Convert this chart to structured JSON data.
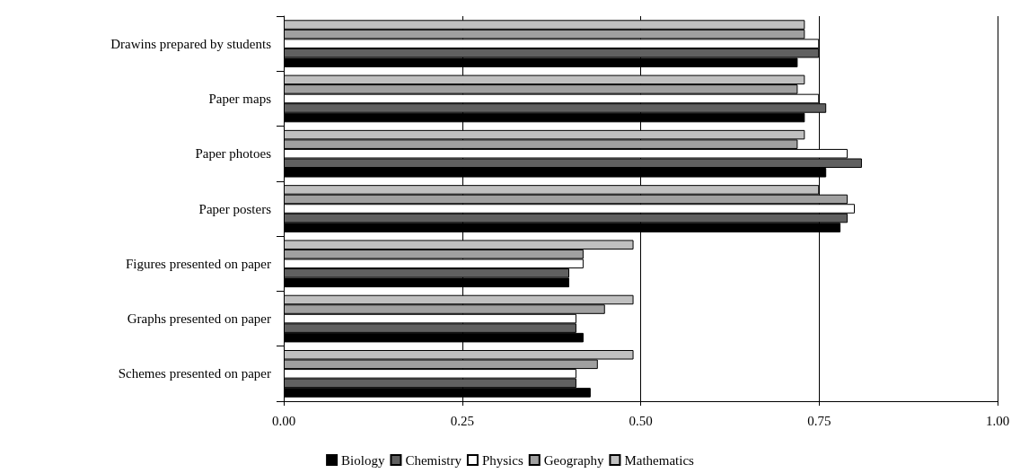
{
  "chart_data": {
    "type": "bar",
    "orientation": "horizontal",
    "categories": [
      "Drawins prepared by students",
      "Paper maps",
      "Paper photoes",
      "Paper posters",
      "Figures presented on paper",
      "Graphs presented on paper",
      "Schemes presented on paper"
    ],
    "series": [
      {
        "name": "Mathematics",
        "color": "#c0c0c0",
        "values": [
          0.73,
          0.73,
          0.73,
          0.75,
          0.49,
          0.49,
          0.49
        ]
      },
      {
        "name": "Geography",
        "color": "#a0a0a0",
        "values": [
          0.73,
          0.72,
          0.72,
          0.79,
          0.42,
          0.45,
          0.44
        ]
      },
      {
        "name": "Physics",
        "color": "#ffffff",
        "values": [
          0.75,
          0.75,
          0.79,
          0.8,
          0.42,
          0.41,
          0.41
        ]
      },
      {
        "name": "Chemistry",
        "color": "#606060",
        "values": [
          0.75,
          0.76,
          0.81,
          0.79,
          0.4,
          0.41,
          0.41
        ]
      },
      {
        "name": "Biology",
        "color": "#000000",
        "values": [
          0.72,
          0.73,
          0.76,
          0.78,
          0.4,
          0.42,
          0.43
        ]
      }
    ],
    "xlim": [
      0,
      1
    ],
    "xticks": [
      {
        "value": 0,
        "label": "0.00"
      },
      {
        "value": 0.25,
        "label": "0.25"
      },
      {
        "value": 0.5,
        "label": "0.50"
      },
      {
        "value": 0.75,
        "label": "0.75"
      },
      {
        "value": 1,
        "label": "1.00"
      }
    ],
    "grid": "x",
    "legend": "bottom"
  }
}
